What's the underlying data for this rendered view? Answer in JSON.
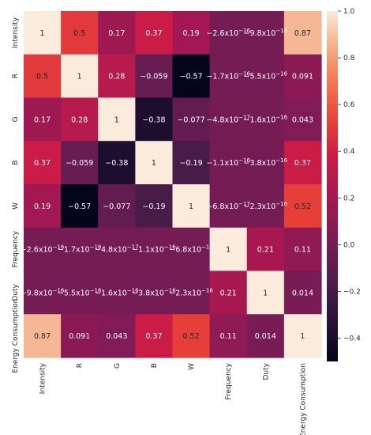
{
  "chart_data": {
    "type": "heatmap",
    "title": "",
    "rows": [
      "Intensity",
      "R",
      "G",
      "B",
      "W",
      "Frequency",
      "Duty",
      "Energy Consumption"
    ],
    "columns": [
      "Intensity",
      "R",
      "G",
      "B",
      "W",
      "Frequency",
      "Duty",
      "Energy Consumption"
    ],
    "values": [
      [
        1,
        0.5,
        0.17,
        0.37,
        0.19,
        -2.6e-16,
        -9.8e-16,
        0.87
      ],
      [
        0.5,
        1,
        0.28,
        -0.059,
        -0.57,
        -1.7e-16,
        -5.5e-16,
        0.091
      ],
      [
        0.17,
        0.28,
        1,
        -0.38,
        -0.077,
        -4.8e-17,
        -1.6e-16,
        0.043
      ],
      [
        0.37,
        -0.059,
        -0.38,
        1,
        -0.19,
        -1.1e-16,
        -3.8e-16,
        0.37
      ],
      [
        0.19,
        -0.57,
        -0.077,
        -0.19,
        1,
        -6.8e-17,
        -2.3e-16,
        0.52
      ],
      [
        -2.6e-16,
        -1.7e-16,
        -4.8e-17,
        -1.1e-16,
        -6.8e-17,
        1,
        0.21,
        0.11
      ],
      [
        -9.8e-16,
        -5.5e-16,
        -1.6e-16,
        -3.8e-16,
        -2.3e-16,
        0.21,
        1,
        0.014
      ],
      [
        0.87,
        0.091,
        0.043,
        0.37,
        0.52,
        0.11,
        0.014,
        1
      ]
    ],
    "annotations": [
      [
        "1",
        "0.5",
        "0.17",
        "0.37",
        "0.19",
        "−2.6x10",
        "−9.8x10",
        "0.87"
      ],
      [
        "0.5",
        "1",
        "0.28",
        "−0.059",
        "−0.57",
        "−1.7x10",
        "−5.5x10",
        "0.091"
      ],
      [
        "0.17",
        "0.28",
        "1",
        "−0.38",
        "−0.077",
        "−4.8x10",
        "−1.6x10",
        "0.043"
      ],
      [
        "0.37",
        "−0.059",
        "−0.38",
        "1",
        "−0.19",
        "−1.1x10",
        "−3.8x10",
        "0.37"
      ],
      [
        "0.19",
        "−0.57",
        "−0.077",
        "−0.19",
        "1",
        "−6.8x10",
        "−2.3x10",
        "0.52"
      ],
      [
        "−2.6x10",
        "−1.7x10",
        "−4.8x10",
        "−1.1x10",
        "−6.8x10",
        "1",
        "0.21",
        "0.11"
      ],
      [
        "−9.8x10",
        "−5.5x10",
        "−1.6x10",
        "−3.8x10",
        "−2.3x10",
        "0.21",
        "1",
        "0.014"
      ],
      [
        "0.87",
        "0.091",
        "0.043",
        "0.37",
        "0.52",
        "0.11",
        "0.014",
        "1"
      ]
    ],
    "annotation_exponents": [
      [
        "",
        "",
        "",
        "",
        "",
        "−16",
        "−16",
        ""
      ],
      [
        "",
        "",
        "",
        "",
        "",
        "−16",
        "−16",
        ""
      ],
      [
        "",
        "",
        "",
        "",
        "",
        "−17",
        "−16",
        ""
      ],
      [
        "",
        "",
        "",
        "",
        "",
        "−16",
        "−16",
        ""
      ],
      [
        "",
        "",
        "",
        "",
        "",
        "−17",
        "−16",
        ""
      ],
      [
        "−16",
        "−16",
        "−17",
        "−16",
        "−17",
        "",
        "",
        ""
      ],
      [
        "−16",
        "−16",
        "−16",
        "−16",
        "−16",
        "",
        "",
        ""
      ],
      [
        "",
        "",
        "",
        "",
        "",
        "",
        "",
        ""
      ]
    ],
    "colorbar": {
      "min": -0.5,
      "max": 1.0,
      "ticks": [
        -0.4,
        -0.2,
        0.0,
        0.2,
        0.4,
        0.6,
        0.8,
        1.0
      ],
      "tick_labels": [
        "−0.4",
        "−0.2",
        "0.0",
        "0.2",
        "0.4",
        "0.6",
        "0.8",
        "1.0"
      ]
    },
    "colormap": "rocket",
    "grid": false,
    "legend": "colorbar-right"
  }
}
